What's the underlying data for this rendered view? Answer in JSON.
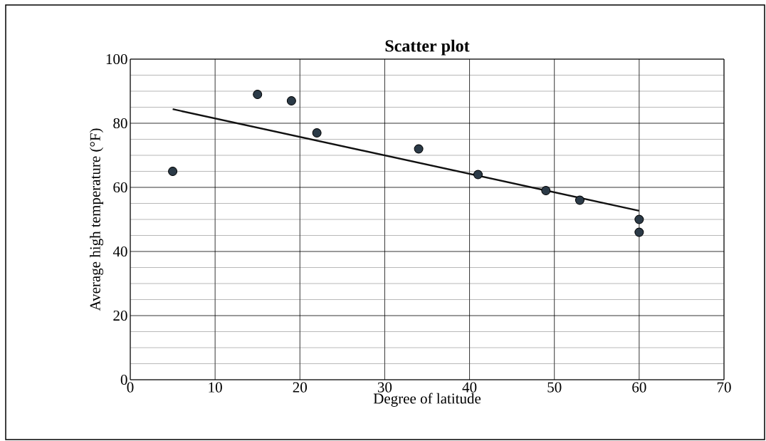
{
  "chart_data": {
    "type": "scatter",
    "title": "Scatter plot",
    "xlabel": "Degree of latitude",
    "ylabel": "Average high temperature (°F)",
    "xlim": [
      0,
      70
    ],
    "xticks": [
      0,
      10,
      20,
      30,
      40,
      50,
      60,
      70
    ],
    "ylim": [
      0,
      100
    ],
    "yticks": [
      0,
      20,
      40,
      60,
      80,
      100
    ],
    "grid": true,
    "series": [
      {
        "marker": "circle",
        "color": "#2b3a47",
        "x": [
          5,
          15,
          19,
          22,
          34,
          41,
          49,
          53,
          60,
          60
        ],
        "values": [
          65,
          89,
          87,
          77,
          72,
          64,
          59,
          56,
          50,
          46
        ]
      },
      {
        "type": "line",
        "marker": "none",
        "color": "#111111",
        "x": [
          5,
          60
        ],
        "values": [
          84.4,
          52.7
        ]
      }
    ]
  }
}
